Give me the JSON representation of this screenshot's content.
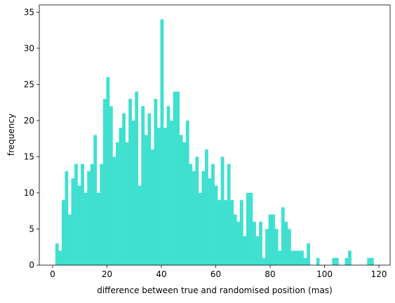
{
  "chart_data": {
    "type": "histogram",
    "x_label": "difference between true and randomised position (mas)",
    "y_label": "frequency",
    "color": "#40e0d0",
    "bins": [
      1,
      2.17,
      3.34,
      4.51,
      5.68,
      6.85,
      8.02,
      9.19,
      10.36,
      11.53,
      12.7,
      13.87,
      15.04,
      16.21,
      17.38,
      18.55,
      19.72,
      20.89,
      22.06,
      23.23,
      24.4,
      25.57,
      26.74,
      27.91,
      29.08,
      30.25,
      31.42,
      32.59,
      33.76,
      34.93,
      36.1,
      37.27,
      38.44,
      39.61,
      40.78,
      41.95,
      43.12,
      44.29,
      45.46,
      46.63,
      47.8,
      48.97,
      50.14,
      51.31,
      52.48,
      53.65,
      54.82,
      55.99,
      57.16,
      58.33,
      59.5,
      60.67,
      61.84,
      63.01,
      64.18,
      65.35,
      66.52,
      67.69,
      68.86,
      70.03,
      71.2,
      72.37,
      73.54,
      74.71,
      75.88,
      77.05,
      78.22,
      79.39,
      80.56,
      81.73,
      82.9,
      84.07,
      85.24,
      86.41,
      87.58,
      88.75,
      89.92,
      91.09,
      92.26,
      93.43,
      94.6,
      95.77,
      96.94,
      98.11,
      99.28,
      100.45,
      101.62,
      102.79,
      103.96,
      105.13,
      106.3,
      107.47,
      108.64,
      109.81,
      110.98,
      112.15,
      113.32,
      114.49,
      115.66,
      116.83,
      118
    ],
    "values": [
      3,
      2,
      9,
      13,
      7,
      12,
      14,
      11,
      14,
      10,
      13,
      14,
      18,
      10,
      14,
      23,
      26,
      22,
      15,
      17,
      19,
      21,
      17,
      23,
      20,
      24,
      11,
      22,
      18,
      21,
      16,
      23,
      19,
      34,
      19,
      22,
      20,
      24,
      24,
      18,
      17,
      20,
      14,
      13,
      15,
      10,
      13,
      16,
      12,
      14,
      11,
      9,
      15,
      9,
      14,
      9,
      7,
      6,
      9,
      4,
      10,
      10,
      6,
      4,
      6,
      1,
      5,
      7,
      7,
      5,
      2,
      8,
      6,
      5,
      2,
      2,
      2,
      2,
      1,
      3,
      0,
      0,
      1,
      0,
      0,
      0,
      0,
      1,
      1,
      0,
      0,
      1,
      2,
      0,
      0,
      0,
      0,
      0,
      1,
      1
    ],
    "xlim": [
      -4.9,
      124.1
    ],
    "ylim": [
      0,
      36
    ],
    "xticks": [
      0,
      20,
      40,
      60,
      80,
      100,
      120
    ],
    "yticks": [
      0,
      5,
      10,
      15,
      20,
      25,
      30,
      35
    ]
  }
}
